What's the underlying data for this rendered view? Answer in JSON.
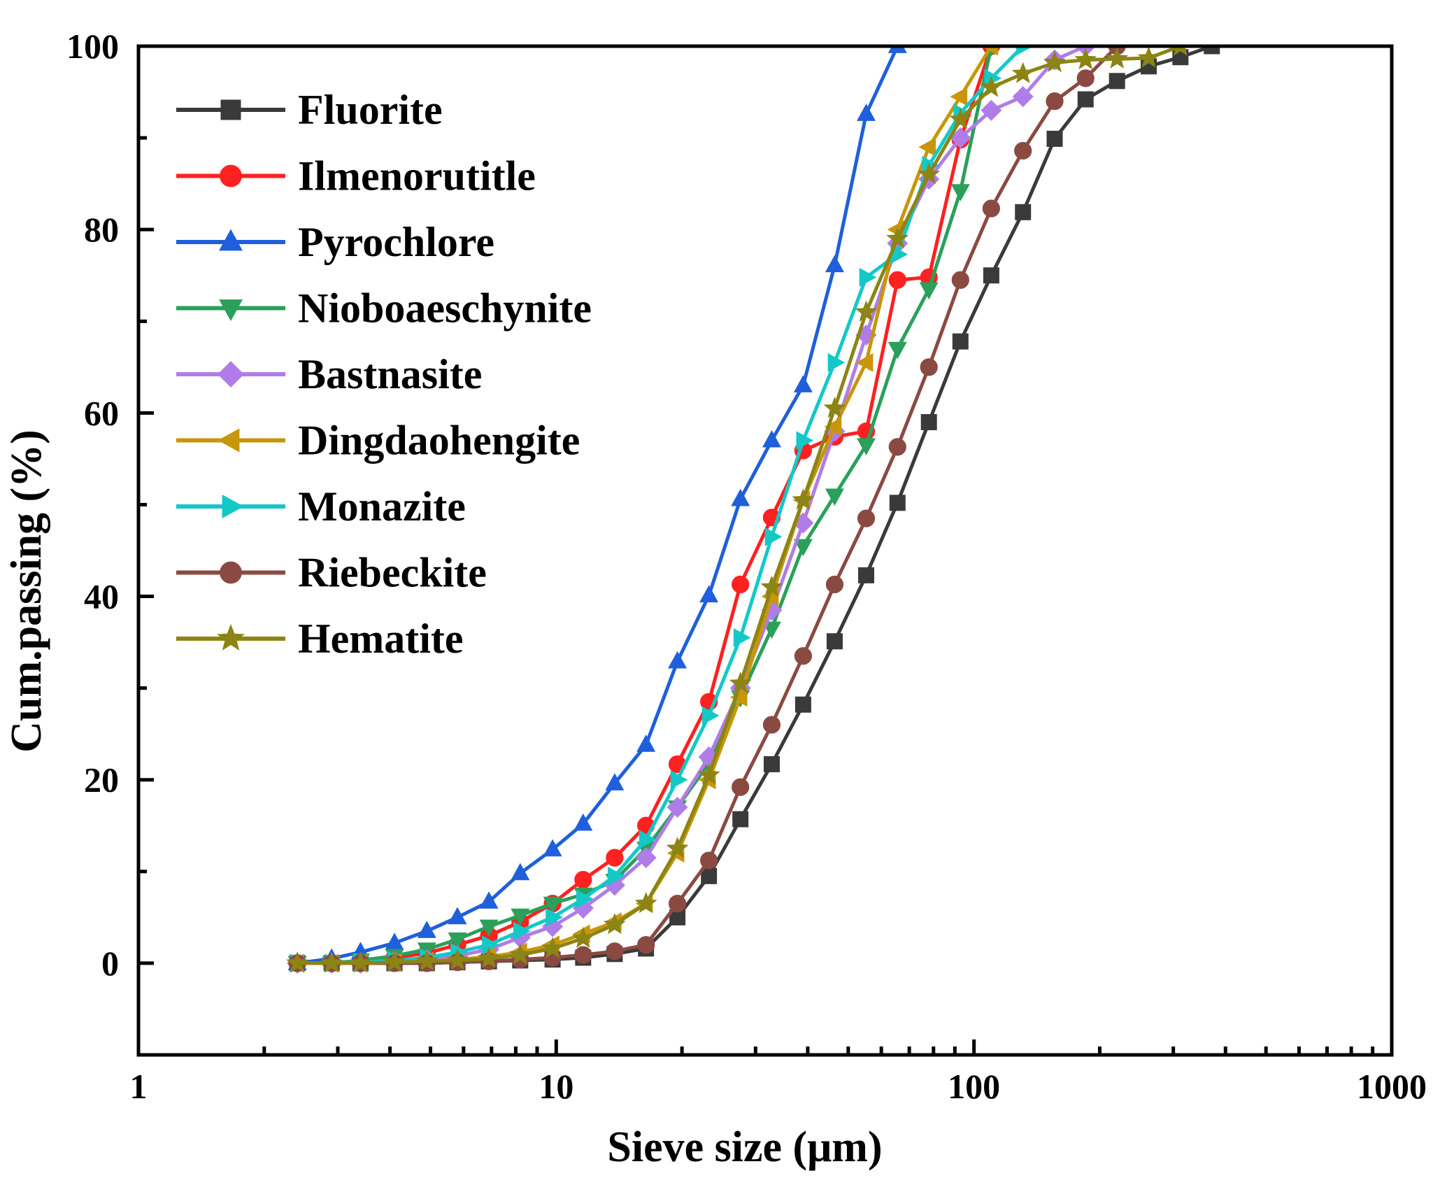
{
  "chart_data": {
    "type": "line",
    "title": "",
    "xlabel": "Sieve size (μm)",
    "ylabel": "Cum.passing (%)",
    "xscale": "log",
    "xlim": [
      1,
      1000
    ],
    "ylim": [
      -10,
      100
    ],
    "xticks": [
      1,
      10,
      100,
      1000
    ],
    "xtick_labels": [
      "1",
      "10",
      "100",
      "1000"
    ],
    "yticks": [
      0,
      20,
      40,
      60,
      80,
      100
    ],
    "ytick_labels": [
      "0",
      "20",
      "40",
      "60",
      "80",
      "100"
    ],
    "legend_position": "top-left",
    "grid": false,
    "series": [
      {
        "name": "Fluorite",
        "color": "#3a3a3a",
        "marker": "square",
        "x": [
          2.4,
          2.9,
          3.4,
          4.1,
          4.9,
          5.8,
          6.9,
          8.2,
          9.8,
          11.6,
          13.8,
          16.4,
          19.5,
          23.2,
          27.6,
          32.8,
          39.0,
          46.4,
          55.2,
          65.6,
          78.0,
          92.8,
          110.0,
          131.0,
          156.0,
          185.0,
          220.0,
          262.0,
          312.0,
          371.0
        ],
        "y": [
          0,
          0,
          0,
          0,
          0,
          0.1,
          0.2,
          0.3,
          0.4,
          0.6,
          1.0,
          1.6,
          5.0,
          9.5,
          15.7,
          21.7,
          28.2,
          35.1,
          42.3,
          50.2,
          59.0,
          67.8,
          75.0,
          81.9,
          89.9,
          94.2,
          96.2,
          97.8,
          98.8,
          100
        ]
      },
      {
        "name": "Ilmenorutitle",
        "color": "#ff2020",
        "marker": "circle",
        "x": [
          2.4,
          2.9,
          3.4,
          4.1,
          4.9,
          5.8,
          6.9,
          8.2,
          9.8,
          11.6,
          13.8,
          16.4,
          19.5,
          23.2,
          27.6,
          32.8,
          39.0,
          46.4,
          55.2,
          65.6,
          78.0,
          92.8,
          110.0
        ],
        "y": [
          0,
          0,
          0.3,
          0.6,
          1.1,
          2.0,
          3.0,
          4.5,
          6.5,
          9.1,
          11.5,
          15.0,
          21.7,
          28.5,
          41.3,
          48.6,
          55.9,
          57.4,
          58.0,
          74.5,
          74.8,
          89.8,
          100
        ]
      },
      {
        "name": "Pyrochlore",
        "color": "#1f5fdc",
        "marker": "triangle-up",
        "x": [
          2.4,
          2.9,
          3.4,
          4.1,
          4.9,
          5.8,
          6.9,
          8.2,
          9.8,
          11.6,
          13.8,
          16.4,
          19.5,
          23.2,
          27.6,
          32.8,
          39.0,
          46.4,
          55.2,
          65.6
        ],
        "y": [
          0,
          0.5,
          1.2,
          2.2,
          3.5,
          5.0,
          6.7,
          9.8,
          12.4,
          15.2,
          19.6,
          23.8,
          32.9,
          40.1,
          50.6,
          57.0,
          63.0,
          76.1,
          92.6,
          100
        ]
      },
      {
        "name": "Nioboaeschynite",
        "color": "#2aa05a",
        "marker": "triangle-down",
        "x": [
          2.4,
          2.9,
          3.4,
          4.1,
          4.9,
          5.8,
          6.9,
          8.2,
          9.8,
          11.6,
          13.8,
          16.4,
          19.5,
          23.2,
          27.6,
          32.8,
          39.0,
          46.4,
          55.2,
          65.6,
          78.0,
          92.8,
          110.0
        ],
        "y": [
          0,
          0,
          0.3,
          0.8,
          1.5,
          2.6,
          4.0,
          5.2,
          6.5,
          7.5,
          9.0,
          12.5,
          17.0,
          21.8,
          29.0,
          36.5,
          45.5,
          51.0,
          56.5,
          67.0,
          73.5,
          84.2,
          100
        ]
      },
      {
        "name": "Bastnasite",
        "color": "#b07ce8",
        "marker": "diamond",
        "x": [
          2.4,
          2.9,
          3.4,
          4.1,
          4.9,
          5.8,
          6.9,
          8.2,
          9.8,
          11.6,
          13.8,
          16.4,
          19.5,
          23.2,
          27.6,
          32.8,
          39.0,
          46.4,
          55.2,
          65.6,
          78.0,
          92.8,
          110.0,
          131.0,
          156.0,
          185.0
        ],
        "y": [
          0,
          0,
          0,
          0.2,
          0.4,
          0.8,
          1.5,
          2.8,
          4.0,
          6.0,
          8.5,
          11.5,
          17.0,
          22.5,
          30.0,
          38.5,
          48.0,
          58.0,
          68.5,
          78.5,
          85.5,
          90.0,
          93.0,
          94.5,
          98.5,
          100
        ]
      },
      {
        "name": "Dingdaohengite",
        "color": "#c8960a",
        "marker": "triangle-left",
        "x": [
          2.4,
          2.9,
          3.4,
          4.1,
          4.9,
          5.8,
          6.9,
          8.2,
          9.8,
          11.6,
          13.8,
          16.4,
          19.5,
          23.2,
          27.6,
          32.8,
          39.0,
          46.4,
          55.2,
          65.6,
          78.0,
          92.8,
          110.0
        ],
        "y": [
          0,
          0,
          0,
          0.1,
          0.2,
          0.4,
          0.7,
          1.2,
          2.0,
          3.2,
          4.5,
          6.5,
          12.0,
          20.0,
          29.0,
          40.0,
          50.5,
          58.5,
          65.5,
          80.0,
          89.0,
          94.5,
          100
        ]
      },
      {
        "name": "Monazite",
        "color": "#14c8c8",
        "marker": "triangle-right",
        "x": [
          2.4,
          2.9,
          3.4,
          4.1,
          4.9,
          5.8,
          6.9,
          8.2,
          9.8,
          11.6,
          13.8,
          16.4,
          19.5,
          23.2,
          27.6,
          32.8,
          39.0,
          46.4,
          55.2,
          65.6,
          78.0,
          92.8,
          110.0,
          131.0
        ],
        "y": [
          0,
          0,
          0.1,
          0.3,
          0.6,
          1.2,
          2.0,
          3.5,
          5.0,
          7.0,
          9.5,
          13.5,
          20.0,
          27.0,
          35.5,
          46.5,
          57.0,
          65.5,
          74.8,
          77.3,
          87.0,
          92.7,
          96.5,
          100
        ]
      },
      {
        "name": "Riebeckite",
        "color": "#8a4a42",
        "marker": "circle",
        "x": [
          2.4,
          2.9,
          3.4,
          4.1,
          4.9,
          5.8,
          6.9,
          8.2,
          9.8,
          11.6,
          13.8,
          16.4,
          19.5,
          23.2,
          27.6,
          32.8,
          39.0,
          46.4,
          55.2,
          65.6,
          78.0,
          92.8,
          110.0,
          131.0,
          156.0,
          185.0,
          220.0
        ],
        "y": [
          0,
          0,
          0,
          0,
          0,
          0.1,
          0.2,
          0.4,
          0.6,
          0.9,
          1.3,
          2.0,
          6.5,
          11.2,
          19.2,
          26.0,
          33.5,
          41.3,
          48.5,
          56.3,
          65.0,
          74.5,
          82.3,
          88.6,
          94.0,
          96.5,
          100
        ]
      },
      {
        "name": "Hematite",
        "color": "#8c8414",
        "marker": "star",
        "x": [
          2.4,
          2.9,
          3.4,
          4.1,
          4.9,
          5.8,
          6.9,
          8.2,
          9.8,
          11.6,
          13.8,
          16.4,
          19.5,
          23.2,
          27.6,
          32.8,
          39.0,
          46.4,
          55.2,
          65.6,
          78.0,
          92.8,
          110.0,
          131.0,
          156.0,
          185.0,
          220.0,
          262.0,
          312.0
        ],
        "y": [
          0,
          0,
          0,
          0.1,
          0.2,
          0.3,
          0.5,
          0.9,
          1.6,
          2.7,
          4.2,
          6.5,
          12.5,
          20.5,
          30.5,
          41.0,
          50.5,
          60.5,
          71.0,
          79.0,
          86.0,
          92.0,
          95.5,
          97.0,
          98.2,
          98.5,
          98.6,
          98.7,
          100
        ]
      }
    ]
  }
}
